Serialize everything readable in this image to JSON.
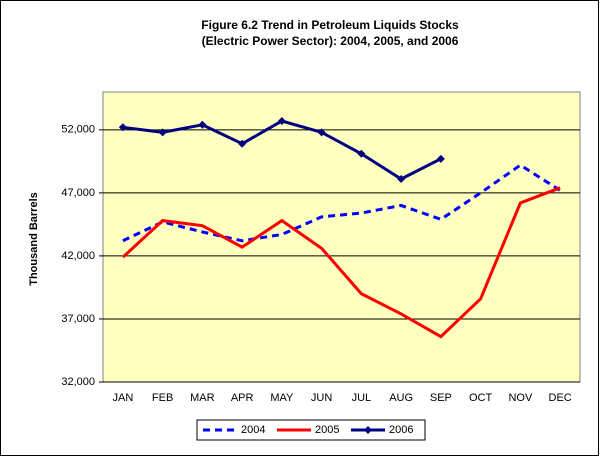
{
  "chart_data": {
    "type": "line",
    "title": [
      "Figure 6.2 Trend in Petroleum Liquids Stocks",
      "(Electric Power Sector): 2004, 2005, and 2006"
    ],
    "y_label": "Thousand Barrels",
    "categories": [
      "JAN",
      "FEB",
      "MAR",
      "APR",
      "MAY",
      "JUN",
      "JUL",
      "AUG",
      "SEP",
      "OCT",
      "NOV",
      "DEC"
    ],
    "series": [
      {
        "name": "2004",
        "color": "#0000ff",
        "style": "dashed",
        "values": [
          43200,
          44700,
          43900,
          43200,
          43700,
          45100,
          45400,
          46000,
          44900,
          47000,
          49200,
          47200
        ]
      },
      {
        "name": "2005",
        "color": "#ff0000",
        "style": "solid",
        "values": [
          41900,
          44800,
          44400,
          42700,
          44800,
          42600,
          39000,
          37400,
          35600,
          38600,
          46200,
          47400
        ]
      },
      {
        "name": "2006",
        "color": "#000080",
        "style": "solid",
        "marker": "diamond",
        "values": [
          52200,
          51800,
          52400,
          50900,
          52700,
          51800,
          50100,
          48100,
          49700,
          null,
          null,
          null
        ]
      }
    ],
    "ylim": [
      32000,
      55000
    ],
    "yticks": [
      {
        "value": 32000,
        "label": "32,000"
      },
      {
        "value": 37000,
        "label": "37,000"
      },
      {
        "value": 42000,
        "label": "42,000"
      },
      {
        "value": 47000,
        "label": "47,000"
      },
      {
        "value": 52000,
        "label": "52,000"
      }
    ],
    "grid": true,
    "plot_background": "#ffffc0",
    "legend": "bottom"
  }
}
